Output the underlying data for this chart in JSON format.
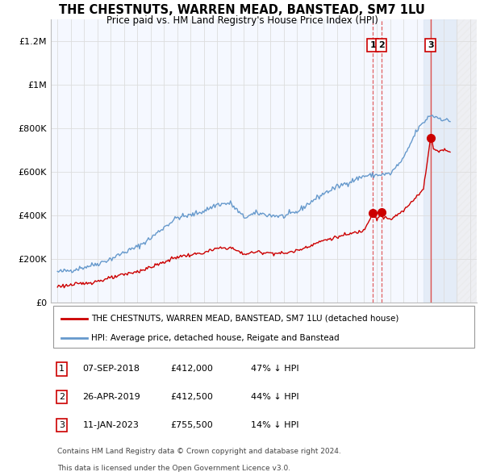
{
  "title": "THE CHESTNUTS, WARREN MEAD, BANSTEAD, SM7 1LU",
  "subtitle": "Price paid vs. HM Land Registry's House Price Index (HPI)",
  "hpi_label": "HPI: Average price, detached house, Reigate and Banstead",
  "property_label": "THE CHESTNUTS, WARREN MEAD, BANSTEAD, SM7 1LU (detached house)",
  "footer_line1": "Contains HM Land Registry data © Crown copyright and database right 2024.",
  "footer_line2": "This data is licensed under the Open Government Licence v3.0.",
  "ylim": [
    0,
    1300000
  ],
  "yticks": [
    0,
    200000,
    400000,
    600000,
    800000,
    1000000,
    1200000
  ],
  "ytick_labels": [
    "£0",
    "£200K",
    "£400K",
    "£600K",
    "£800K",
    "£1M",
    "£1.2M"
  ],
  "hpi_color": "#6699cc",
  "property_color": "#cc0000",
  "sale_color": "#cc0000",
  "vline_color": "#dd4444",
  "grid_color": "#dddddd",
  "bg_color": "#f5f8ff",
  "sales": [
    {
      "num": 1,
      "date": "07-SEP-2018",
      "price": 412000,
      "pct": "47% ↓ HPI",
      "x": 2018.69
    },
    {
      "num": 2,
      "date": "26-APR-2019",
      "price": 412500,
      "pct": "44% ↓ HPI",
      "x": 2019.32
    },
    {
      "num": 3,
      "date": "11-JAN-2023",
      "price": 755500,
      "pct": "14% ↓ HPI",
      "x": 2023.03
    }
  ],
  "shade_blue_start": 2022.5,
  "shade_blue_end": 2025.0,
  "shade_hatch_start": 2025.0,
  "shade_hatch_end": 2026.5,
  "xlim": [
    1994.5,
    2026.5
  ],
  "xticks": [
    1995,
    1996,
    1997,
    1998,
    1999,
    2000,
    2001,
    2002,
    2003,
    2004,
    2005,
    2006,
    2007,
    2008,
    2009,
    2010,
    2011,
    2012,
    2013,
    2014,
    2015,
    2016,
    2017,
    2018,
    2019,
    2020,
    2021,
    2022,
    2023,
    2024,
    2025,
    2026
  ]
}
